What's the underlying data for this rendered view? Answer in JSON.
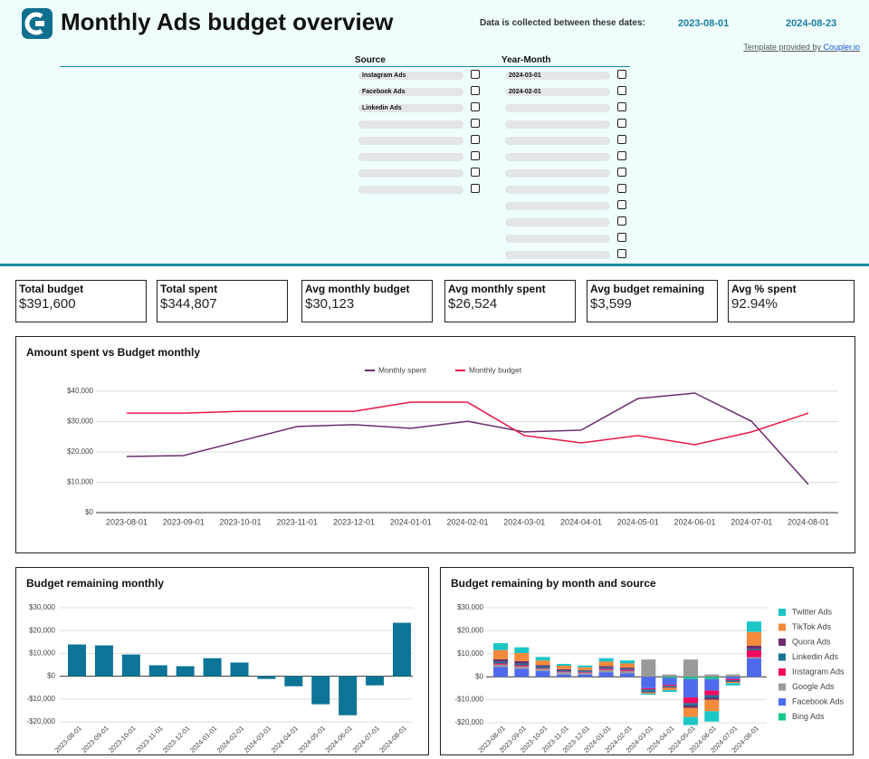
{
  "header": {
    "title": "Monthly Ads budget overview",
    "date_note": "Data is collected between these dates:",
    "start_date": "2023-08-01",
    "end_date": "2024-08-23",
    "credit_prefix": "Template provided by",
    "credit_link": "Coupler.io"
  },
  "filters": [
    {
      "title": "Source",
      "items": [
        "Instagram Ads",
        "Facebook Ads",
        "Linkedin Ads"
      ]
    },
    {
      "title": "Year-Month",
      "items": [
        "2024-03-01",
        "2024-02-01"
      ]
    }
  ],
  "kpis": [
    {
      "label": "Total budget",
      "value": "$391,600"
    },
    {
      "label": "Total spent",
      "value": "$344,807"
    },
    {
      "label": "Avg monthly budget",
      "value": "$30,123"
    },
    {
      "label": "Avg monthly spent",
      "value": "$26,524"
    },
    {
      "label": "Avg budget remaining",
      "value": "$3,599"
    },
    {
      "label": "Avg % spent",
      "value": "92.94%"
    }
  ],
  "chart_data": [
    {
      "type": "line",
      "title": "Amount spent vs Budget monthly",
      "categories": [
        "2023-08-01",
        "2023-09-01",
        "2023-10-01",
        "2023-11-01",
        "2023-12-01",
        "2024-01-01",
        "2024-02-01",
        "2024-03-01",
        "2024-04-01",
        "2024-05-01",
        "2024-06-01",
        "2024-07-01",
        "2024-08-01"
      ],
      "series": [
        {
          "name": "Monthly spent",
          "color": "#6b2d6e",
          "values": [
            18500,
            18800,
            23600,
            28400,
            29000,
            27800,
            30100,
            26600,
            27200,
            37600,
            39400,
            30100,
            9300
          ]
        },
        {
          "name": "Monthly budget",
          "color": "#e8174a",
          "values": [
            32800,
            32800,
            33400,
            33400,
            33400,
            36400,
            36400,
            25400,
            23000,
            25400,
            22400,
            26600,
            32800
          ]
        }
      ],
      "ylim": [
        0,
        40000
      ],
      "yticks": [
        {
          "value": 0,
          "label": "$0"
        },
        {
          "value": 10000,
          "label": "$10,000"
        },
        {
          "value": 20000,
          "label": "$20,000"
        },
        {
          "value": 30000,
          "label": "$30,000"
        },
        {
          "value": 40000,
          "label": "$40,000"
        }
      ],
      "grid": true,
      "legend": "top"
    },
    {
      "type": "bar",
      "title": "Budget remaining monthly",
      "categories": [
        "2023-08-01",
        "2023-09-01",
        "2023-10-01",
        "2023-11-01",
        "2023-12-01",
        "2024-01-01",
        "2024-02-01",
        "2024-03-01",
        "2024-04-01",
        "2024-05-01",
        "2024-06-01",
        "2024-07-01",
        "2024-08-01"
      ],
      "values": [
        13900,
        13500,
        9500,
        4800,
        4400,
        7900,
        6000,
        -1200,
        -4400,
        -12300,
        -17100,
        -4000,
        23400
      ],
      "color": "#0b7497",
      "ylim": [
        -20000,
        30000
      ],
      "yticks": [
        {
          "value": -20000,
          "label": "-$20,000"
        },
        {
          "value": -10000,
          "label": "-$10,000"
        },
        {
          "value": 0,
          "label": "$0"
        },
        {
          "value": 10000,
          "label": "$10,000"
        },
        {
          "value": 20000,
          "label": "$20,000"
        },
        {
          "value": 30000,
          "label": "$30,000"
        }
      ],
      "grid": true
    },
    {
      "type": "stacked_bar",
      "title": "Budget remaining by month and source",
      "categories": [
        "2023-08-01",
        "2023-09-01",
        "2023-10-01",
        "2023-11-01",
        "2023-12-01",
        "2024-01-01",
        "2024-02-01",
        "2024-03-01",
        "2024-04-01",
        "2024-05-01",
        "2024-06-01",
        "2024-07-01",
        "2024-08-01"
      ],
      "series": [
        {
          "name": "Twitter Ads",
          "color": "#1bc6c6",
          "values": [
            3000,
            2500,
            1500,
            800,
            800,
            1500,
            1300,
            -500,
            -800,
            -3500,
            -4500,
            -1000,
            4500
          ]
        },
        {
          "name": "TikTok Ads",
          "color": "#f58a3b",
          "values": [
            4000,
            3500,
            2000,
            1500,
            1200,
            2000,
            1800,
            -500,
            -1000,
            -4000,
            -5000,
            -500,
            6000
          ]
        },
        {
          "name": "Quora Ads",
          "color": "#6b2d6e",
          "values": [
            1000,
            1000,
            500,
            500,
            300,
            500,
            500,
            -300,
            -300,
            -1000,
            -1000,
            -300,
            1500
          ]
        },
        {
          "name": "Linkedin Ads",
          "color": "#1b7494",
          "values": [
            800,
            800,
            800,
            500,
            500,
            600,
            500,
            -1000,
            -500,
            -1000,
            -1000,
            -500,
            500
          ]
        },
        {
          "name": "Instagram Ads",
          "color": "#f5085e",
          "values": [
            500,
            500,
            300,
            300,
            300,
            500,
            500,
            -500,
            -500,
            -2500,
            -2000,
            -500,
            3000
          ]
        },
        {
          "name": "Google Ads",
          "color": "#9a9a9a",
          "values": [
            1000,
            1000,
            1000,
            1000,
            800,
            1000,
            1000,
            7500,
            1000,
            7500,
            1000,
            1000,
            500
          ]
        },
        {
          "name": "Facebook Ads",
          "color": "#4f6bed",
          "values": [
            4300,
            3500,
            2500,
            1000,
            1000,
            2000,
            1500,
            -5000,
            -3000,
            -8000,
            -5000,
            -1000,
            8000
          ]
        },
        {
          "name": "Bing Ads",
          "color": "#17c88c",
          "values": [
            0,
            0,
            0,
            0,
            0,
            0,
            0,
            0,
            -500,
            -1000,
            -1000,
            0,
            0
          ]
        }
      ],
      "ylim": [
        -20000,
        30000
      ],
      "yticks": [
        {
          "value": -20000,
          "label": "-$20,000"
        },
        {
          "value": -10000,
          "label": "-$10,000"
        },
        {
          "value": 0,
          "label": "$0"
        },
        {
          "value": 10000,
          "label": "$10,000"
        },
        {
          "value": 20000,
          "label": "$20,000"
        },
        {
          "value": 30000,
          "label": "$30,000"
        }
      ],
      "grid": true,
      "legend": "right"
    }
  ]
}
